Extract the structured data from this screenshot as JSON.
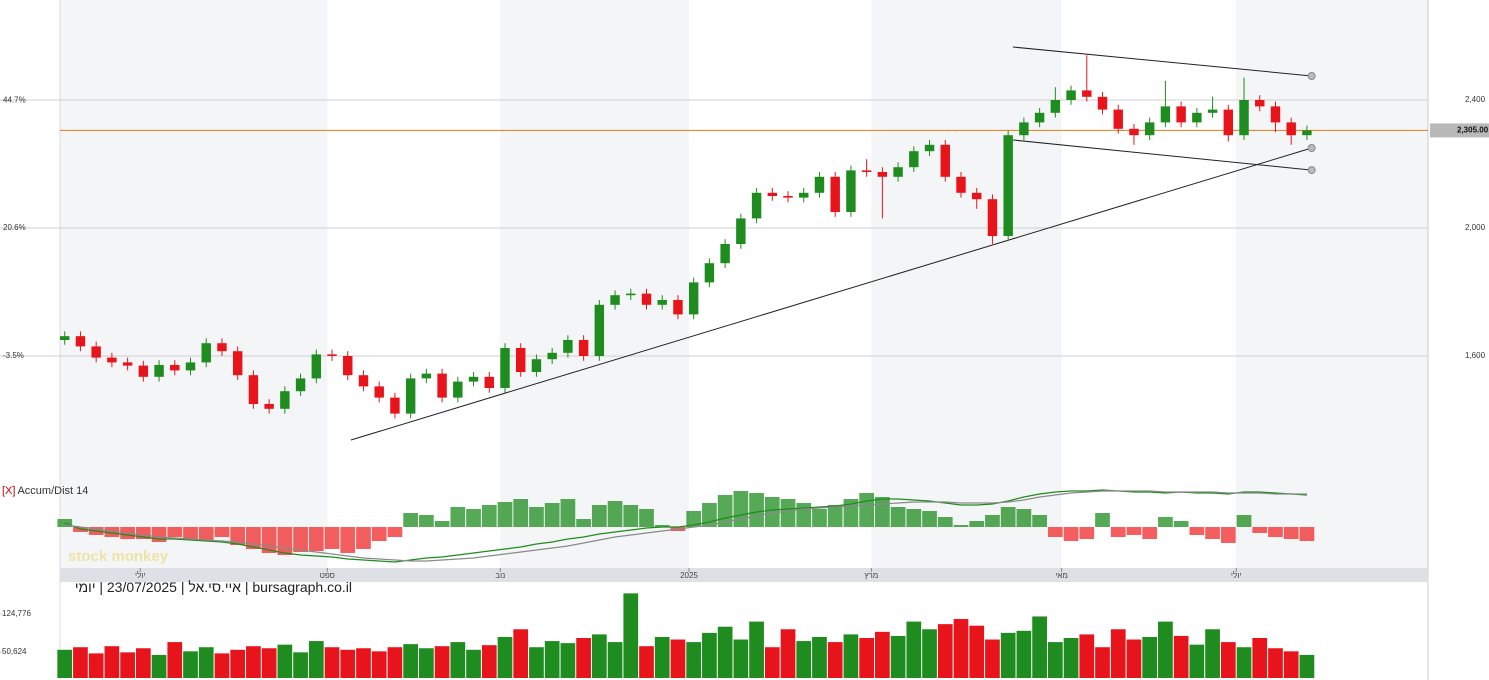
{
  "chart_data": {
    "type": "candlestick",
    "caption": "bursagraph.co.il | איי.סי.אל | 23/07/2025 | יומי",
    "watermark": "stock monkey",
    "xlim": [
      -0.3,
      86.7
    ],
    "xticks": [
      {
        "value": 4.8,
        "label": "יולי"
      },
      {
        "value": 16.7,
        "label": "ספט"
      },
      {
        "value": 27.7,
        "label": "נוב"
      },
      {
        "value": 39.7,
        "label": "2025"
      },
      {
        "value": 51.3,
        "label": "מרץ"
      },
      {
        "value": 63.4,
        "label": "מאי"
      },
      {
        "value": 74.5,
        "label": "יולי"
      }
    ],
    "open": [
      1650,
      1662,
      1630,
      1595,
      1580,
      1570,
      1535,
      1572,
      1555,
      1580,
      1640,
      1615,
      1540,
      1450,
      1435,
      1490,
      1530,
      1605,
      1600,
      1540,
      1505,
      1470,
      1420,
      1530,
      1545,
      1470,
      1520,
      1535,
      1500,
      1625,
      1550,
      1590,
      1610,
      1650,
      1600,
      1760,
      1790,
      1795,
      1760,
      1775,
      1730,
      1830,
      1890,
      1950,
      2030,
      2110,
      2100,
      2095,
      2110,
      2160,
      2050,
      2180,
      2175,
      2160,
      2190,
      2240,
      2260,
      2160,
      2110,
      2090,
      1975,
      2290,
      2330,
      2360,
      2400,
      2430,
      2410,
      2370,
      2310,
      2290,
      2330,
      2380,
      2330,
      2360,
      2370,
      2290,
      2400,
      2380,
      2330,
      2290
    ],
    "high": [
      1677,
      1677,
      1645,
      1610,
      1595,
      1585,
      1587,
      1587,
      1595,
      1655,
      1655,
      1630,
      1555,
      1465,
      1505,
      1545,
      1620,
      1620,
      1615,
      1555,
      1520,
      1485,
      1545,
      1560,
      1560,
      1535,
      1550,
      1550,
      1640,
      1640,
      1605,
      1625,
      1665,
      1665,
      1775,
      1805,
      1810,
      1810,
      1790,
      1790,
      1845,
      1905,
      1965,
      2045,
      2125,
      2125,
      2115,
      2125,
      2175,
      2175,
      2195,
      2215,
      2190,
      2205,
      2255,
      2275,
      2275,
      2175,
      2125,
      2105,
      2305,
      2345,
      2375,
      2440,
      2445,
      2540,
      2425,
      2385,
      2325,
      2345,
      2460,
      2395,
      2375,
      2410,
      2385,
      2470,
      2415,
      2395,
      2345,
      2320
    ],
    "low": [
      1635,
      1615,
      1580,
      1565,
      1555,
      1520,
      1520,
      1540,
      1540,
      1565,
      1600,
      1525,
      1435,
      1420,
      1420,
      1475,
      1515,
      1585,
      1525,
      1490,
      1455,
      1405,
      1405,
      1515,
      1455,
      1455,
      1505,
      1485,
      1485,
      1535,
      1535,
      1575,
      1595,
      1585,
      1585,
      1745,
      1775,
      1745,
      1745,
      1715,
      1715,
      1815,
      1875,
      1935,
      2015,
      2085,
      2080,
      2080,
      2095,
      2035,
      2035,
      2160,
      2030,
      2145,
      2175,
      2225,
      2145,
      2095,
      2060,
      1950,
      1960,
      2275,
      2315,
      2345,
      2385,
      2395,
      2355,
      2295,
      2260,
      2275,
      2315,
      2315,
      2315,
      2345,
      2270,
      2275,
      2365,
      2300,
      2260,
      2275
    ],
    "close": [
      1662,
      1630,
      1595,
      1580,
      1570,
      1535,
      1572,
      1555,
      1580,
      1640,
      1615,
      1540,
      1450,
      1435,
      1490,
      1530,
      1605,
      1600,
      1540,
      1505,
      1470,
      1420,
      1530,
      1545,
      1470,
      1520,
      1535,
      1500,
      1625,
      1550,
      1590,
      1610,
      1650,
      1600,
      1760,
      1790,
      1795,
      1760,
      1775,
      1730,
      1830,
      1890,
      1950,
      2030,
      2110,
      2100,
      2095,
      2110,
      2160,
      2050,
      2180,
      2175,
      2160,
      2190,
      2240,
      2260,
      2160,
      2110,
      2090,
      1975,
      2290,
      2330,
      2360,
      2400,
      2430,
      2410,
      2370,
      2310,
      2290,
      2330,
      2380,
      2330,
      2360,
      2370,
      2290,
      2400,
      2380,
      2330,
      2290,
      2305
    ],
    "up_color": "#1e8c1e",
    "down_color": "#e8141c",
    "ylim": [
      1212.5,
      2712.5
    ],
    "yticks": [
      {
        "value": 1600,
        "label": "1,600"
      },
      {
        "value": 2000,
        "label": "2,000"
      },
      {
        "value": 2400,
        "label": "2,400"
      }
    ],
    "y2lim": [
      -26.9,
      63.6
    ],
    "y2ticks": [
      {
        "value": -3.5,
        "label": "-3.5%"
      },
      {
        "value": 20.6,
        "label": "20.6%"
      },
      {
        "value": 44.7,
        "label": "44.7%"
      }
    ],
    "grid": true,
    "last_price": {
      "value": 2305,
      "label": "2,305.00"
    },
    "last_price_color": "#e07b1a",
    "trendlines": [
      {
        "x": [
          18.2,
          79.3
        ],
        "y": [
          1337.5,
          2250
        ]
      },
      {
        "x": [
          60.3,
          79.3
        ],
        "y": [
          2565.6,
          2475
        ]
      },
      {
        "x": [
          60.3,
          79.3
        ],
        "y": [
          2275,
          2181
        ]
      }
    ],
    "indicator": {
      "title_tag": "[X]",
      "title": "Accum/Dist 14",
      "ylim": [
        -40,
        40
      ],
      "values": [
        8,
        -5,
        -8,
        -10,
        -12,
        -12,
        -15,
        -10,
        -12,
        -14,
        -10,
        -18,
        -22,
        -26,
        -28,
        -25,
        -24,
        -22,
        -26,
        -22,
        -14,
        -10,
        14,
        12,
        6,
        20,
        18,
        22,
        25,
        28,
        20,
        24,
        28,
        8,
        22,
        26,
        22,
        18,
        2,
        -4,
        16,
        24,
        32,
        36,
        34,
        30,
        28,
        24,
        18,
        22,
        28,
        34,
        30,
        20,
        18,
        16,
        10,
        2,
        6,
        12,
        20,
        18,
        12,
        -10,
        -14,
        -12,
        14,
        -10,
        -8,
        -12,
        10,
        6,
        -8,
        -12,
        -16,
        12,
        -6,
        -10,
        -12,
        -14
      ],
      "lines": [
        {
          "color": "#1e8c1e",
          "values": [
            4,
            -2,
            -4,
            -6,
            -8,
            -10,
            -12,
            -12,
            -13,
            -14,
            -15,
            -17,
            -20,
            -23,
            -26,
            -28,
            -29,
            -30,
            -32,
            -33,
            -34,
            -35,
            -33,
            -31,
            -30,
            -28,
            -26,
            -24,
            -22,
            -20,
            -17,
            -15,
            -12,
            -10,
            -7,
            -5,
            -3,
            -1,
            0,
            0,
            2,
            5,
            9,
            12,
            15,
            17,
            18,
            19,
            20,
            21,
            23,
            26,
            28,
            28,
            27,
            26,
            24,
            22,
            22,
            23,
            26,
            30,
            33,
            35,
            36,
            36,
            37,
            36,
            35,
            35,
            34,
            35,
            34,
            34,
            33,
            35,
            35,
            34,
            33,
            32
          ]
        },
        {
          "color": "#8a8a8a",
          "values": [
            2,
            0,
            -2,
            -4,
            -6,
            -8,
            -10,
            -11,
            -12,
            -13,
            -14,
            -15,
            -17,
            -19,
            -21,
            -23,
            -25,
            -27,
            -29,
            -31,
            -32,
            -33,
            -34,
            -34,
            -33,
            -32,
            -31,
            -29,
            -27,
            -25,
            -23,
            -21,
            -19,
            -16,
            -13,
            -10,
            -8,
            -6,
            -4,
            -2,
            0,
            2,
            5,
            8,
            11,
            14,
            16,
            18,
            19,
            20,
            21,
            22,
            23,
            24,
            25,
            25,
            25,
            24,
            24,
            24,
            25,
            27,
            30,
            32,
            34,
            35,
            36,
            36,
            36,
            36,
            35,
            35,
            35,
            35,
            34,
            34,
            34,
            33,
            33,
            33
          ]
        }
      ]
    },
    "volume": {
      "ylim": [
        0,
        181315
      ],
      "yticks": [
        {
          "value": 50624,
          "label": "50,624"
        },
        {
          "value": 124776,
          "label": "124,776"
        }
      ],
      "values": [
        55000,
        60000,
        48000,
        62000,
        50000,
        58000,
        45000,
        70000,
        52000,
        60000,
        48000,
        55000,
        62000,
        58000,
        65000,
        50000,
        72000,
        60000,
        55000,
        58000,
        52000,
        60000,
        66000,
        58000,
        62000,
        70000,
        55000,
        64000,
        80000,
        95000,
        60000,
        72000,
        68000,
        78000,
        85000,
        70000,
        165000,
        62000,
        80000,
        75000,
        70000,
        88000,
        100000,
        75000,
        110000,
        60000,
        95000,
        72000,
        80000,
        70000,
        85000,
        78000,
        90000,
        82000,
        110000,
        95000,
        105000,
        115000,
        102000,
        75000,
        88000,
        92000,
        120000,
        70000,
        78000,
        85000,
        60000,
        95000,
        75000,
        80000,
        110000,
        82000,
        65000,
        95000,
        70000,
        60000,
        78000,
        58000,
        52000,
        45000
      ]
    }
  }
}
